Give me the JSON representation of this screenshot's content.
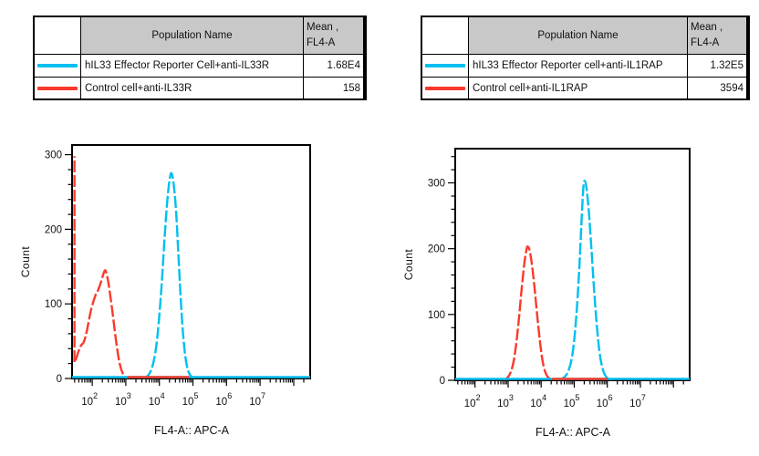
{
  "palette": {
    "cyan": "#00bff0",
    "red": "#f93a2c",
    "header_gray": "#c8c8c8",
    "axis_black": "#000000"
  },
  "tables": [
    {
      "header": {
        "population": "Population Name",
        "mean_line1": "Mean ,",
        "mean_line2": "FL4-A"
      },
      "rows": [
        {
          "color": "#00bff0",
          "name": "hIL33 Effector Reporter Cell+anti-IL33R",
          "mean": "1.68E4"
        },
        {
          "color": "#f93a2c",
          "name": "Control cell+anti-IL33R",
          "mean": "158"
        }
      ]
    },
    {
      "header": {
        "population": "Population Name",
        "mean_line1": "Mean ,",
        "mean_line2": "FL4-A"
      },
      "rows": [
        {
          "color": "#00bff0",
          "name": "hIL33 Effector Reporter cell+anti-IL1RAP",
          "mean": "1.32E5"
        },
        {
          "color": "#f93a2c",
          "name": "Control cell+anti-IL1RAP",
          "mean": "3594"
        }
      ]
    }
  ],
  "chart_data": [
    {
      "type": "line",
      "subtype": "flow-histogram-overlay",
      "xlabel": "FL4-A:: APC-A",
      "ylabel": "Count",
      "x_scale": "log10",
      "x_range_log": [
        1.4,
        8.49
      ],
      "x_tick_exponents_labeled": [
        2,
        3,
        4,
        5,
        6,
        7
      ],
      "x_tick_base": "10",
      "y_ticks": [
        0,
        100,
        200,
        300
      ],
      "y_minor_step": 20,
      "ylim": [
        0,
        313
      ],
      "grid": false,
      "series": [
        {
          "name": "Control cell+anti-IL33R",
          "color": "#f93a2c",
          "mean": "158",
          "edge_spike": {
            "x_log": 1.47,
            "y_from": 22,
            "y_to": 298
          },
          "points": [
            [
              1.5,
              24
            ],
            [
              1.56,
              32
            ],
            [
              1.62,
              40
            ],
            [
              1.68,
              45
            ],
            [
              1.74,
              48
            ],
            [
              1.8,
              56
            ],
            [
              1.86,
              68
            ],
            [
              1.92,
              82
            ],
            [
              1.98,
              95
            ],
            [
              2.04,
              104
            ],
            [
              2.1,
              112
            ],
            [
              2.16,
              117
            ],
            [
              2.22,
              124
            ],
            [
              2.28,
              132
            ],
            [
              2.34,
              141
            ],
            [
              2.39,
              145
            ],
            [
              2.44,
              138
            ],
            [
              2.49,
              126
            ],
            [
              2.54,
              110
            ],
            [
              2.6,
              90
            ],
            [
              2.66,
              68
            ],
            [
              2.72,
              47
            ],
            [
              2.78,
              29
            ],
            [
              2.84,
              16
            ],
            [
              2.9,
              8
            ],
            [
              2.96,
              3
            ],
            [
              3.02,
              1
            ],
            [
              3.08,
              0.5
            ]
          ]
        },
        {
          "name": "hIL33 Effector Reporter Cell+anti-IL33R",
          "color": "#00bff0",
          "mean": "1.68E4",
          "baseline_full": true,
          "points": [
            [
              3.52,
              0.5
            ],
            [
              3.6,
              2
            ],
            [
              3.68,
              5
            ],
            [
              3.76,
              12
            ],
            [
              3.84,
              25
            ],
            [
              3.92,
              48
            ],
            [
              4.0,
              85
            ],
            [
              4.08,
              135
            ],
            [
              4.16,
              192
            ],
            [
              4.24,
              240
            ],
            [
              4.31,
              268
            ],
            [
              4.36,
              275
            ],
            [
              4.42,
              262
            ],
            [
              4.49,
              228
            ],
            [
              4.56,
              172
            ],
            [
              4.63,
              112
            ],
            [
              4.7,
              62
            ],
            [
              4.77,
              30
            ],
            [
              4.84,
              13
            ],
            [
              4.91,
              5
            ],
            [
              4.98,
              2
            ],
            [
              5.05,
              0.5
            ]
          ]
        }
      ],
      "baseline_overlays": [
        {
          "color": "#f93a2c",
          "from_log": 3.05,
          "to_log": 4.88
        }
      ]
    },
    {
      "type": "line",
      "subtype": "flow-histogram-overlay",
      "xlabel": "FL4-A:: APC-A",
      "ylabel": "Count",
      "x_scale": "log10",
      "x_range_log": [
        1.4,
        8.49
      ],
      "x_tick_exponents_labeled": [
        2,
        3,
        4,
        5,
        6,
        7
      ],
      "x_tick_base": "10",
      "y_ticks": [
        0,
        100,
        200,
        300
      ],
      "y_minor_step": 20,
      "ylim": [
        0,
        352
      ],
      "grid": false,
      "series": [
        {
          "name": "Control cell+anti-IL1RAP",
          "color": "#f93a2c",
          "mean": "3594",
          "points": [
            [
              2.85,
              0.5
            ],
            [
              2.93,
              2
            ],
            [
              3.01,
              6
            ],
            [
              3.09,
              14
            ],
            [
              3.17,
              30
            ],
            [
              3.25,
              58
            ],
            [
              3.33,
              96
            ],
            [
              3.41,
              140
            ],
            [
              3.49,
              178
            ],
            [
              3.56,
              200
            ],
            [
              3.6,
              203
            ],
            [
              3.65,
              197
            ],
            [
              3.72,
              176
            ],
            [
              3.8,
              140
            ],
            [
              3.88,
              98
            ],
            [
              3.96,
              60
            ],
            [
              4.04,
              30
            ],
            [
              4.12,
              13
            ],
            [
              4.2,
              5
            ],
            [
              4.28,
              2
            ],
            [
              4.35,
              0.5
            ]
          ]
        },
        {
          "name": "hIL33 Effector Reporter cell+anti-IL1RAP",
          "color": "#00bff0",
          "mean": "1.32E5",
          "baseline_full": true,
          "points": [
            [
              4.52,
              0.5
            ],
            [
              4.62,
              2
            ],
            [
              4.72,
              6
            ],
            [
              4.82,
              14
            ],
            [
              4.92,
              32
            ],
            [
              5.0,
              62
            ],
            [
              5.08,
              110
            ],
            [
              5.16,
              178
            ],
            [
              5.23,
              252
            ],
            [
              5.28,
              295
            ],
            [
              5.32,
              303
            ],
            [
              5.37,
              292
            ],
            [
              5.44,
              258
            ],
            [
              5.52,
              200
            ],
            [
              5.6,
              138
            ],
            [
              5.68,
              85
            ],
            [
              5.76,
              45
            ],
            [
              5.84,
              21
            ],
            [
              5.92,
              9
            ],
            [
              6.0,
              3.5
            ],
            [
              6.08,
              1
            ],
            [
              6.15,
              0.5
            ]
          ]
        }
      ],
      "baseline_overlays": [
        {
          "color": "#f93a2c",
          "from_log": 4.33,
          "to_log": 6.0
        }
      ]
    }
  ]
}
